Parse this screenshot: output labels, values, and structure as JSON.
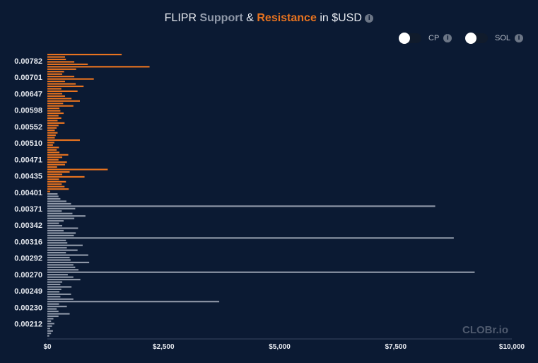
{
  "title": {
    "prefix": "FLIPR",
    "support": "Support",
    "amp": "&",
    "resistance": "Resistance",
    "suffix": "in $USD"
  },
  "toggles": [
    {
      "label": "CP",
      "state": "off"
    },
    {
      "label": "SOL",
      "state": "off"
    }
  ],
  "info_glyph": "i",
  "watermark": "CLOBr.io",
  "colors": {
    "background": "#0b1a33",
    "resistance": "#e8731f",
    "support": "#8f98a8"
  },
  "chart_data": {
    "type": "bar",
    "orientation": "horizontal",
    "title": "FLIPR Support & Resistance in $USD",
    "xlim": [
      0,
      10000
    ],
    "x_ticks": [
      "$0",
      "$2,500",
      "$5,000",
      "$7,500",
      "$10,000"
    ],
    "y_ticks": [
      "0.00782",
      "0.00701",
      "0.00647",
      "0.00598",
      "0.00552",
      "0.00510",
      "0.00471",
      "0.00435",
      "0.00401",
      "0.00371",
      "0.00342",
      "0.00316",
      "0.00292",
      "0.00270",
      "0.00249",
      "0.00230",
      "0.00212"
    ],
    "series": [
      {
        "name": "Resistance",
        "color": "#e8731f",
        "values": [
          1600,
          380,
          400,
          580,
          870,
          2200,
          620,
          360,
          320,
          580,
          1000,
          380,
          610,
          780,
          300,
          650,
          320,
          380,
          520,
          700,
          340,
          560,
          260,
          280,
          350,
          240,
          300,
          220,
          370,
          240,
          200,
          160,
          220,
          180,
          160,
          700,
          150,
          120,
          250,
          200,
          260,
          450,
          320,
          240,
          420,
          380,
          210,
          1300,
          480,
          320,
          800,
          250,
          400,
          310,
          370,
          460,
          60
        ],
        "bar_values_note": ""
      },
      {
        "name": "Support",
        "color": "#8f98a8",
        "values": [
          220,
          240,
          280,
          410,
          510,
          8350,
          600,
          310,
          540,
          820,
          580,
          350,
          250,
          320,
          660,
          350,
          610,
          570,
          8750,
          400,
          430,
          760,
          420,
          650,
          400,
          880,
          480,
          500,
          900,
          560,
          600,
          670,
          9200,
          440,
          560,
          710,
          320,
          280,
          520,
          300,
          260,
          510,
          280,
          560,
          3700,
          250,
          420,
          200,
          240,
          480,
          240,
          130,
          80,
          150,
          100,
          60,
          120,
          80,
          40
        ]
      }
    ]
  }
}
